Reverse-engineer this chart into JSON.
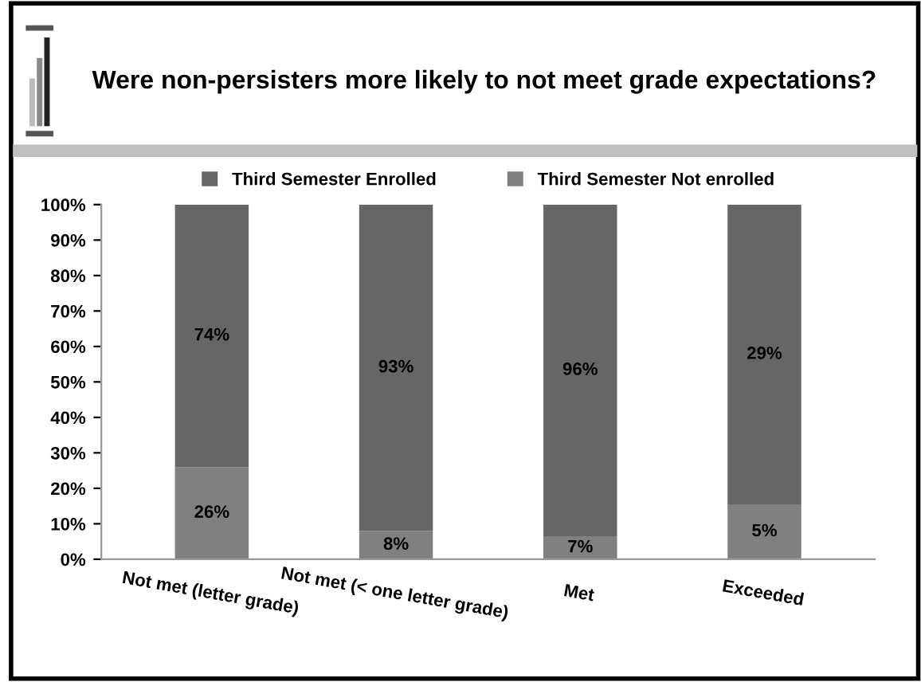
{
  "chart_data": {
    "type": "bar",
    "title": "Were non-persisters more likely to not meet grade expectations?",
    "categories": [
      "Not met (letter grade)",
      "Not met (< one letter grade)",
      "Met",
      "Exceeded"
    ],
    "stacked": true,
    "series": [
      {
        "name": "Third Semester Not enrolled",
        "color": "#808080",
        "values": [
          26,
          8,
          6.5,
          15.5
        ]
      },
      {
        "name": "Third Semester Enrolled",
        "color": "#666666",
        "values": [
          74,
          92,
          93.5,
          84.5
        ]
      }
    ],
    "annotations": [
      "26%",
      "8%",
      "7%",
      "5%",
      "74%",
      "93%",
      "96%",
      "29%"
    ],
    "ylim": [
      0,
      100
    ],
    "yticks": [
      {
        "value": 0,
        "label": "0%"
      },
      {
        "value": 10,
        "label": "10%"
      },
      {
        "value": 20,
        "label": "20%"
      },
      {
        "value": 30,
        "label": "30%"
      },
      {
        "value": 40,
        "label": "40%"
      },
      {
        "value": 50,
        "label": "50%"
      },
      {
        "value": 60,
        "label": "60%"
      },
      {
        "value": 70,
        "label": "70%"
      },
      {
        "value": 80,
        "label": "80%"
      },
      {
        "value": 90,
        "label": "90%"
      },
      {
        "value": 100,
        "label": "100%"
      }
    ],
    "grid": false,
    "legend": "top"
  }
}
